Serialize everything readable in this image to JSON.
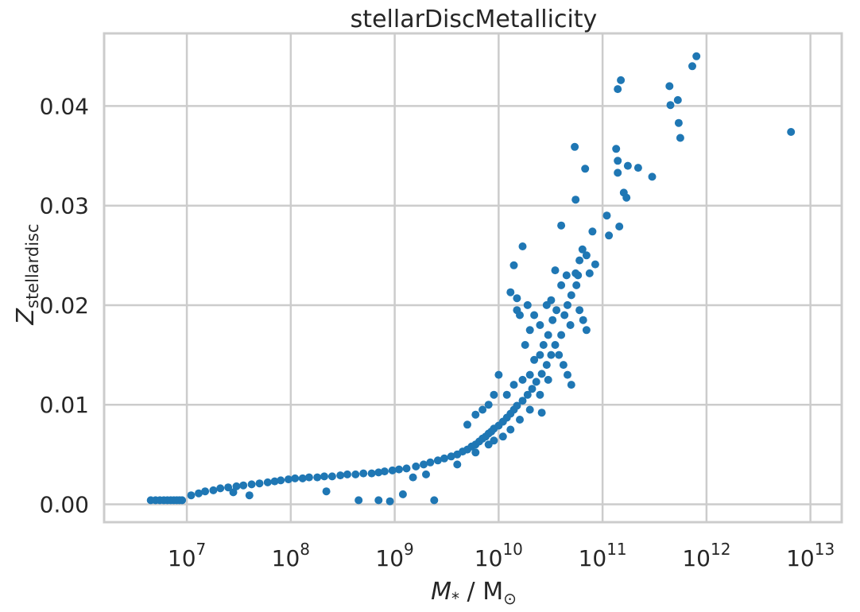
{
  "chart_data": {
    "type": "scatter",
    "title": "stellarDiscMetallicity",
    "xscale": "log",
    "xlim": [
      1600000.0,
      20000000000000.0
    ],
    "ylim": [
      -0.0018,
      0.0473
    ],
    "grid": true,
    "color": "#1f77b4",
    "xticks": [
      {
        "base": "10",
        "exp": "7",
        "value": 10000000.0
      },
      {
        "base": "10",
        "exp": "8",
        "value": 100000000.0
      },
      {
        "base": "10",
        "exp": "9",
        "value": 1000000000.0
      },
      {
        "base": "10",
        "exp": "10",
        "value": 10000000000.0
      },
      {
        "base": "10",
        "exp": "11",
        "value": 100000000000.0
      },
      {
        "base": "10",
        "exp": "12",
        "value": 1000000000000.0
      },
      {
        "base": "10",
        "exp": "13",
        "value": 10000000000000.0
      }
    ],
    "yticks": [
      {
        "label": "0.00",
        "value": 0.0
      },
      {
        "label": "0.01",
        "value": 0.01
      },
      {
        "label": "0.02",
        "value": 0.02
      },
      {
        "label": "0.03",
        "value": 0.03
      },
      {
        "label": "0.04",
        "value": 0.04
      }
    ],
    "xlabel": {
      "symbol": "M",
      "sub": "*",
      "rest": " / M",
      "sun": "⊙"
    },
    "ylabel": {
      "symbol": "Z",
      "sub": "stellardisc"
    },
    "points": [
      [
        4500000.0,
        0.0004
      ],
      [
        5000000.0,
        0.0004
      ],
      [
        5500000.0,
        0.0004
      ],
      [
        6000000.0,
        0.0004
      ],
      [
        6500000.0,
        0.0004
      ],
      [
        7000000.0,
        0.0004
      ],
      [
        7500000.0,
        0.0004
      ],
      [
        8000000.0,
        0.0004
      ],
      [
        8500000.0,
        0.0004
      ],
      [
        9000000.0,
        0.0004
      ],
      [
        11000000.0,
        0.0009
      ],
      [
        13000000.0,
        0.0011
      ],
      [
        15000000.0,
        0.0013
      ],
      [
        18000000.0,
        0.0014
      ],
      [
        21000000.0,
        0.0016
      ],
      [
        25000000.0,
        0.0017
      ],
      [
        30000000.0,
        0.0018
      ],
      [
        35000000.0,
        0.0019
      ],
      [
        42000000.0,
        0.002
      ],
      [
        50000000.0,
        0.0021
      ],
      [
        60000000.0,
        0.0022
      ],
      [
        70000000.0,
        0.0023
      ],
      [
        80000000.0,
        0.0024
      ],
      [
        95000000.0,
        0.0025
      ],
      [
        110000000.0,
        0.0026
      ],
      [
        130000000.0,
        0.0026
      ],
      [
        150000000.0,
        0.0027
      ],
      [
        180000000.0,
        0.0027
      ],
      [
        210000000.0,
        0.0028
      ],
      [
        250000000.0,
        0.0028
      ],
      [
        300000000.0,
        0.0029
      ],
      [
        350000000.0,
        0.003
      ],
      [
        420000000.0,
        0.003
      ],
      [
        500000000.0,
        0.0031
      ],
      [
        600000000.0,
        0.0031
      ],
      [
        700000000.0,
        0.0032
      ],
      [
        800000000.0,
        0.0033
      ],
      [
        950000000.0,
        0.0034
      ],
      [
        1100000000.0,
        0.0035
      ],
      [
        1300000000.0,
        0.0036
      ],
      [
        1600000000.0,
        0.0038
      ],
      [
        1900000000.0,
        0.004
      ],
      [
        2200000000.0,
        0.0042
      ],
      [
        2600000000.0,
        0.0044
      ],
      [
        3000000000.0,
        0.0046
      ],
      [
        3500000000.0,
        0.0048
      ],
      [
        4000000000.0,
        0.005
      ],
      [
        4500000000.0,
        0.0053
      ],
      [
        5000000000.0,
        0.0055
      ],
      [
        5500000000.0,
        0.0058
      ],
      [
        6000000000.0,
        0.006
      ],
      [
        6500000000.0,
        0.0063
      ],
      [
        7000000000.0,
        0.0066
      ],
      [
        7500000000.0,
        0.0068
      ],
      [
        8000000000.0,
        0.0071
      ],
      [
        8500000000.0,
        0.0073
      ],
      [
        9000000000.0,
        0.0076
      ],
      [
        10000000000.0,
        0.0079
      ],
      [
        11000000000.0,
        0.0083
      ],
      [
        12000000000.0,
        0.0087
      ],
      [
        13000000000.0,
        0.0091
      ],
      [
        14000000000.0,
        0.0095
      ],
      [
        15000000000.0,
        0.0099
      ],
      [
        17000000000.0,
        0.0104
      ],
      [
        19000000000.0,
        0.011
      ],
      [
        21000000000.0,
        0.0116
      ],
      [
        23000000000.0,
        0.0123
      ],
      [
        26000000000.0,
        0.0131
      ],
      [
        29000000000.0,
        0.014
      ],
      [
        32000000000.0,
        0.015
      ],
      [
        28000000.0,
        0.0012
      ],
      [
        40000000.0,
        0.0009
      ],
      [
        220000000.0,
        0.0013
      ],
      [
        450000000.0,
        0.0004
      ],
      [
        700000000.0,
        0.0004
      ],
      [
        900000000.0,
        0.0003
      ],
      [
        1200000000.0,
        0.001
      ],
      [
        2400000000.0,
        0.0004
      ],
      [
        1500000000.0,
        0.0027
      ],
      [
        2000000000.0,
        0.003
      ],
      [
        4000000000.0,
        0.004
      ],
      [
        6000000000.0,
        0.0052
      ],
      [
        8000000000.0,
        0.006
      ],
      [
        9000000000.0,
        0.0064
      ],
      [
        11000000000.0,
        0.0068
      ],
      [
        13000000000.0,
        0.0075
      ],
      [
        16000000000.0,
        0.0085
      ],
      [
        20000000000.0,
        0.0095
      ],
      [
        25000000000.0,
        0.011
      ],
      [
        30000000000.0,
        0.0125
      ],
      [
        5000000000.0,
        0.008
      ],
      [
        6000000000.0,
        0.009
      ],
      [
        7000000000.0,
        0.0095
      ],
      [
        8000000000.0,
        0.01
      ],
      [
        9000000000.0,
        0.011
      ],
      [
        10000000000.0,
        0.013
      ],
      [
        12000000000.0,
        0.011
      ],
      [
        14000000000.0,
        0.012
      ],
      [
        17000000000.0,
        0.0125
      ],
      [
        20000000000.0,
        0.013
      ],
      [
        22000000000.0,
        0.0145
      ],
      [
        25000000000.0,
        0.015
      ],
      [
        27000000000.0,
        0.016
      ],
      [
        30000000000.0,
        0.017
      ],
      [
        33000000000.0,
        0.0185
      ],
      [
        36000000000.0,
        0.0195
      ],
      [
        40000000000.0,
        0.017
      ],
      [
        43000000000.0,
        0.019
      ],
      [
        46000000000.0,
        0.02
      ],
      [
        49000000000.0,
        0.018
      ],
      [
        20000000000.0,
        0.0175
      ],
      [
        22000000000.0,
        0.019
      ],
      [
        25000000000.0,
        0.018
      ],
      [
        29000000000.0,
        0.02
      ],
      [
        32000000000.0,
        0.0205
      ],
      [
        35000000000.0,
        0.0235
      ],
      [
        40000000000.0,
        0.022
      ],
      [
        45000000000.0,
        0.023
      ],
      [
        50000000000.0,
        0.021
      ],
      [
        56000000000.0,
        0.022
      ],
      [
        60000000000.0,
        0.0195
      ],
      [
        65000000000.0,
        0.0185
      ],
      [
        70000000000.0,
        0.0175
      ],
      [
        35000000000.0,
        0.016
      ],
      [
        38000000000.0,
        0.015
      ],
      [
        42000000000.0,
        0.014
      ],
      [
        46000000000.0,
        0.013
      ],
      [
        50000000000.0,
        0.012
      ],
      [
        13000000000.0,
        0.0213
      ],
      [
        14000000000.0,
        0.024
      ],
      [
        15000000000.0,
        0.0207
      ],
      [
        16000000000.0,
        0.019
      ],
      [
        17000000000.0,
        0.0259
      ],
      [
        19000000000.0,
        0.02
      ],
      [
        15000000000.0,
        0.0195
      ],
      [
        18000000000.0,
        0.016
      ],
      [
        60000000000.0,
        0.0245
      ],
      [
        64000000000.0,
        0.0256
      ],
      [
        70000000000.0,
        0.025
      ],
      [
        75000000000.0,
        0.0232
      ],
      [
        85000000000.0,
        0.0241
      ],
      [
        58000000000.0,
        0.023
      ],
      [
        55000000000.0,
        0.0232
      ],
      [
        40000000000.0,
        0.028
      ],
      [
        54000000000.0,
        0.0359
      ],
      [
        55000000000.0,
        0.0306
      ],
      [
        68000000000.0,
        0.0337
      ],
      [
        80000000000.0,
        0.0274
      ],
      [
        110000000000.0,
        0.029
      ],
      [
        115000000000.0,
        0.027
      ],
      [
        135000000000.0,
        0.0357
      ],
      [
        140000000000.0,
        0.0345
      ],
      [
        140000000000.0,
        0.0333
      ],
      [
        145000000000.0,
        0.0279
      ],
      [
        160000000000.0,
        0.0313
      ],
      [
        170000000000.0,
        0.0308
      ],
      [
        175000000000.0,
        0.034
      ],
      [
        220000000000.0,
        0.0338
      ],
      [
        300000000000.0,
        0.0329
      ],
      [
        140000000000.0,
        0.0417
      ],
      [
        150000000000.0,
        0.0426
      ],
      [
        440000000000.0,
        0.042
      ],
      [
        450000000000.0,
        0.0401
      ],
      [
        530000000000.0,
        0.0406
      ],
      [
        540000000000.0,
        0.0383
      ],
      [
        560000000000.0,
        0.0368
      ],
      [
        730000000000.0,
        0.044
      ],
      [
        800000000000.0,
        0.045
      ],
      [
        6500000000000.0,
        0.0374
      ],
      [
        26000000000.0,
        0.0092
      ]
    ]
  }
}
